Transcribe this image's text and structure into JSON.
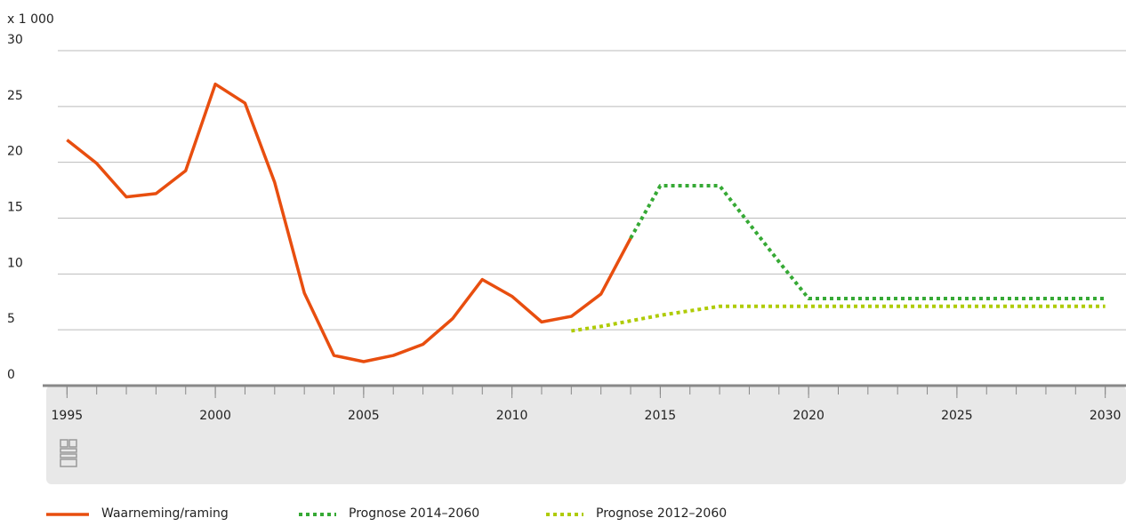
{
  "chart_data": {
    "type": "line",
    "unit_label": "x 1 000",
    "x": [
      1995,
      1996,
      1997,
      1998,
      1999,
      2000,
      2001,
      2002,
      2003,
      2004,
      2005,
      2006,
      2007,
      2008,
      2009,
      2010,
      2011,
      2012,
      2013,
      2014,
      2015,
      2016,
      2017,
      2018,
      2019,
      2020,
      2021,
      2022,
      2023,
      2024,
      2025,
      2026,
      2027,
      2028,
      2029,
      2030
    ],
    "xlim": [
      1994.3,
      2030.7
    ],
    "xticks": [
      1995,
      2000,
      2005,
      2010,
      2015,
      2020,
      2025,
      2030
    ],
    "ylim": [
      0,
      30
    ],
    "yticks": [
      0,
      5,
      10,
      15,
      20,
      25,
      30
    ],
    "grid": true,
    "legend": "bottom",
    "series": [
      {
        "name": "Waarneming/raming",
        "color": "#e84e0f",
        "dash": false,
        "values": [
          22.0,
          19.9,
          16.9,
          17.2,
          19.25,
          27.0,
          25.3,
          18.2,
          8.3,
          2.7,
          2.15,
          2.7,
          3.7,
          6.0,
          9.5,
          8.0,
          5.7,
          6.2,
          8.2,
          13.2,
          null,
          null,
          null,
          null,
          null,
          null,
          null,
          null,
          null,
          null,
          null,
          null,
          null,
          null,
          null,
          null
        ]
      },
      {
        "name": "Prognose 2014–2060",
        "color": "#36a935",
        "dash": true,
        "values": [
          null,
          null,
          null,
          null,
          null,
          null,
          null,
          null,
          null,
          null,
          null,
          null,
          null,
          null,
          null,
          null,
          null,
          null,
          null,
          13.2,
          17.9,
          17.9,
          17.9,
          14.5,
          11.1,
          7.8,
          7.8,
          7.8,
          7.8,
          7.8,
          7.8,
          7.8,
          7.8,
          7.8,
          7.8,
          7.8
        ]
      },
      {
        "name": "Prognose 2012–2060",
        "color": "#afcb05",
        "dash": true,
        "values": [
          null,
          null,
          null,
          null,
          null,
          null,
          null,
          null,
          null,
          null,
          null,
          null,
          null,
          null,
          null,
          null,
          null,
          4.9,
          5.3,
          5.8,
          6.3,
          6.7,
          7.1,
          7.1,
          7.1,
          7.1,
          7.1,
          7.1,
          7.1,
          7.1,
          7.1,
          7.1,
          7.1,
          7.1,
          7.1,
          7.1
        ]
      }
    ]
  }
}
